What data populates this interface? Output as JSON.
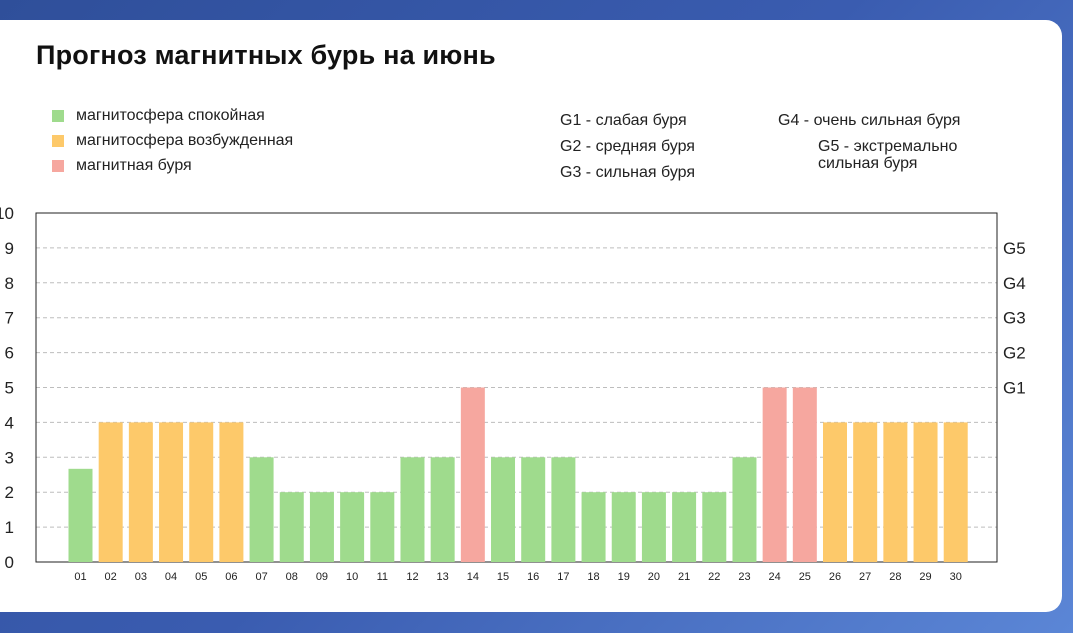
{
  "title": "Прогноз магнитных бурь на июнь",
  "legend": [
    {
      "label": "магнитосфера спокойная",
      "color": "#9fdb8d"
    },
    {
      "label": "магнитосфера возбужденная",
      "color": "#fdc96a"
    },
    {
      "label": "магнитная буря",
      "color": "#f6a79f"
    }
  ],
  "g_scale": {
    "g1": "G1 - слабая буря",
    "g2": "G2 - средняя буря",
    "g3": "G3 - сильная буря",
    "g4": "G4 - очень сильная буря",
    "g5_line1": "G5 - экстремально",
    "g5_line2": "сильная буря"
  },
  "chart_data": {
    "type": "bar",
    "title": "Прогноз магнитных бурь на июнь",
    "categories": [
      "01",
      "02",
      "03",
      "04",
      "05",
      "06",
      "07",
      "08",
      "09",
      "10",
      "11",
      "12",
      "13",
      "14",
      "15",
      "16",
      "17",
      "18",
      "19",
      "20",
      "21",
      "22",
      "23",
      "24",
      "25",
      "26",
      "27",
      "28",
      "29",
      "30"
    ],
    "values": [
      2.67,
      4,
      4,
      4,
      4,
      4,
      3,
      2,
      2,
      2,
      2,
      3,
      3,
      5,
      3,
      3,
      3,
      2,
      2,
      2,
      2,
      2,
      3,
      5,
      5,
      4,
      4,
      4,
      4,
      4
    ],
    "status": [
      "calm",
      "excited",
      "excited",
      "excited",
      "excited",
      "excited",
      "calm",
      "calm",
      "calm",
      "calm",
      "calm",
      "calm",
      "calm",
      "storm",
      "calm",
      "calm",
      "calm",
      "calm",
      "calm",
      "calm",
      "calm",
      "calm",
      "calm",
      "storm",
      "storm",
      "excited",
      "excited",
      "excited",
      "excited",
      "excited"
    ],
    "colors": {
      "calm": "#9fdb8d",
      "excited": "#fdc96a",
      "storm": "#f6a79f"
    },
    "ylim": [
      0,
      10
    ],
    "yticks": [
      "0",
      "1",
      "2",
      "3",
      "4",
      "5",
      "6",
      "7",
      "8",
      "9",
      "10"
    ],
    "right_axis": [
      {
        "value": 5,
        "label": "G1"
      },
      {
        "value": 6,
        "label": "G2"
      },
      {
        "value": 7,
        "label": "G3"
      },
      {
        "value": 8,
        "label": "G4"
      },
      {
        "value": 9,
        "label": "G5"
      }
    ],
    "grid": true,
    "xlabel": "",
    "ylabel": ""
  }
}
